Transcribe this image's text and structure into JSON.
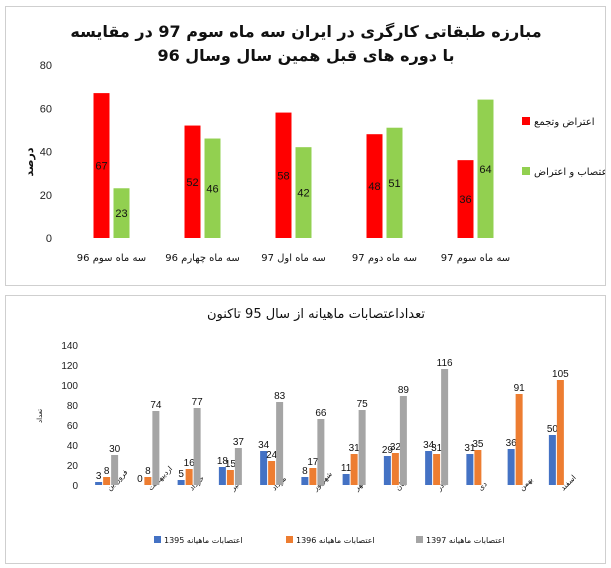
{
  "chart_data": [
    {
      "type": "bar",
      "title_line1": "مبارزه طبقاتی کارگری در ایران سه ماه سوم 97 در مقایسه",
      "title_line2": "با دوره های قبل همین سال وسال 96",
      "ylabel": "درصد",
      "ylim": [
        0,
        80
      ],
      "yticks": [
        0,
        20,
        40,
        60,
        80
      ],
      "grid": false,
      "legend_position": "right",
      "categories": [
        "سه ماه سوم 96",
        "سه ماه چهارم 96",
        "سه ماه اول 97",
        "سه ماه دوم 97",
        "سه ماه سوم 97"
      ],
      "series": [
        {
          "name": "اعتراض وتجمع",
          "color": "#ff0000",
          "values": [
            67,
            52,
            58,
            48,
            36
          ]
        },
        {
          "name": "اعتصاب و اعتراض",
          "color": "#92d050",
          "values": [
            23,
            46,
            42,
            51,
            64
          ]
        }
      ]
    },
    {
      "type": "bar",
      "title": "تعداداعتصابات ماهیانه از سال 95 تاکنون",
      "ylabel": "تعداد",
      "ylim": [
        0,
        140
      ],
      "yticks": [
        0,
        20,
        40,
        60,
        80,
        100,
        120,
        140
      ],
      "grid": false,
      "legend_position": "bottom",
      "categories": [
        "فروردین",
        "اردیبهشت",
        "خرداد",
        "تیر",
        "مرداد",
        "شهریور",
        "مهر",
        "ابان",
        "اذر",
        "دی",
        "بهمن",
        "اسفند"
      ],
      "series": [
        {
          "name": "اعتصابات ماهیانه 1395",
          "color": "#4472c4",
          "values": [
            3,
            0,
            5,
            18,
            34,
            8,
            11,
            29,
            34,
            31,
            36,
            50
          ]
        },
        {
          "name": "اعتصابات ماهیانه 1396",
          "color": "#ed7d31",
          "values": [
            8,
            8,
            16,
            15,
            24,
            17,
            31,
            32,
            31,
            35,
            91,
            105
          ]
        },
        {
          "name": "اعتصابات ماهیانه 1397",
          "color": "#a5a5a5",
          "values": [
            30,
            74,
            77,
            37,
            83,
            66,
            75,
            89,
            116,
            null,
            null,
            null
          ]
        }
      ]
    }
  ]
}
